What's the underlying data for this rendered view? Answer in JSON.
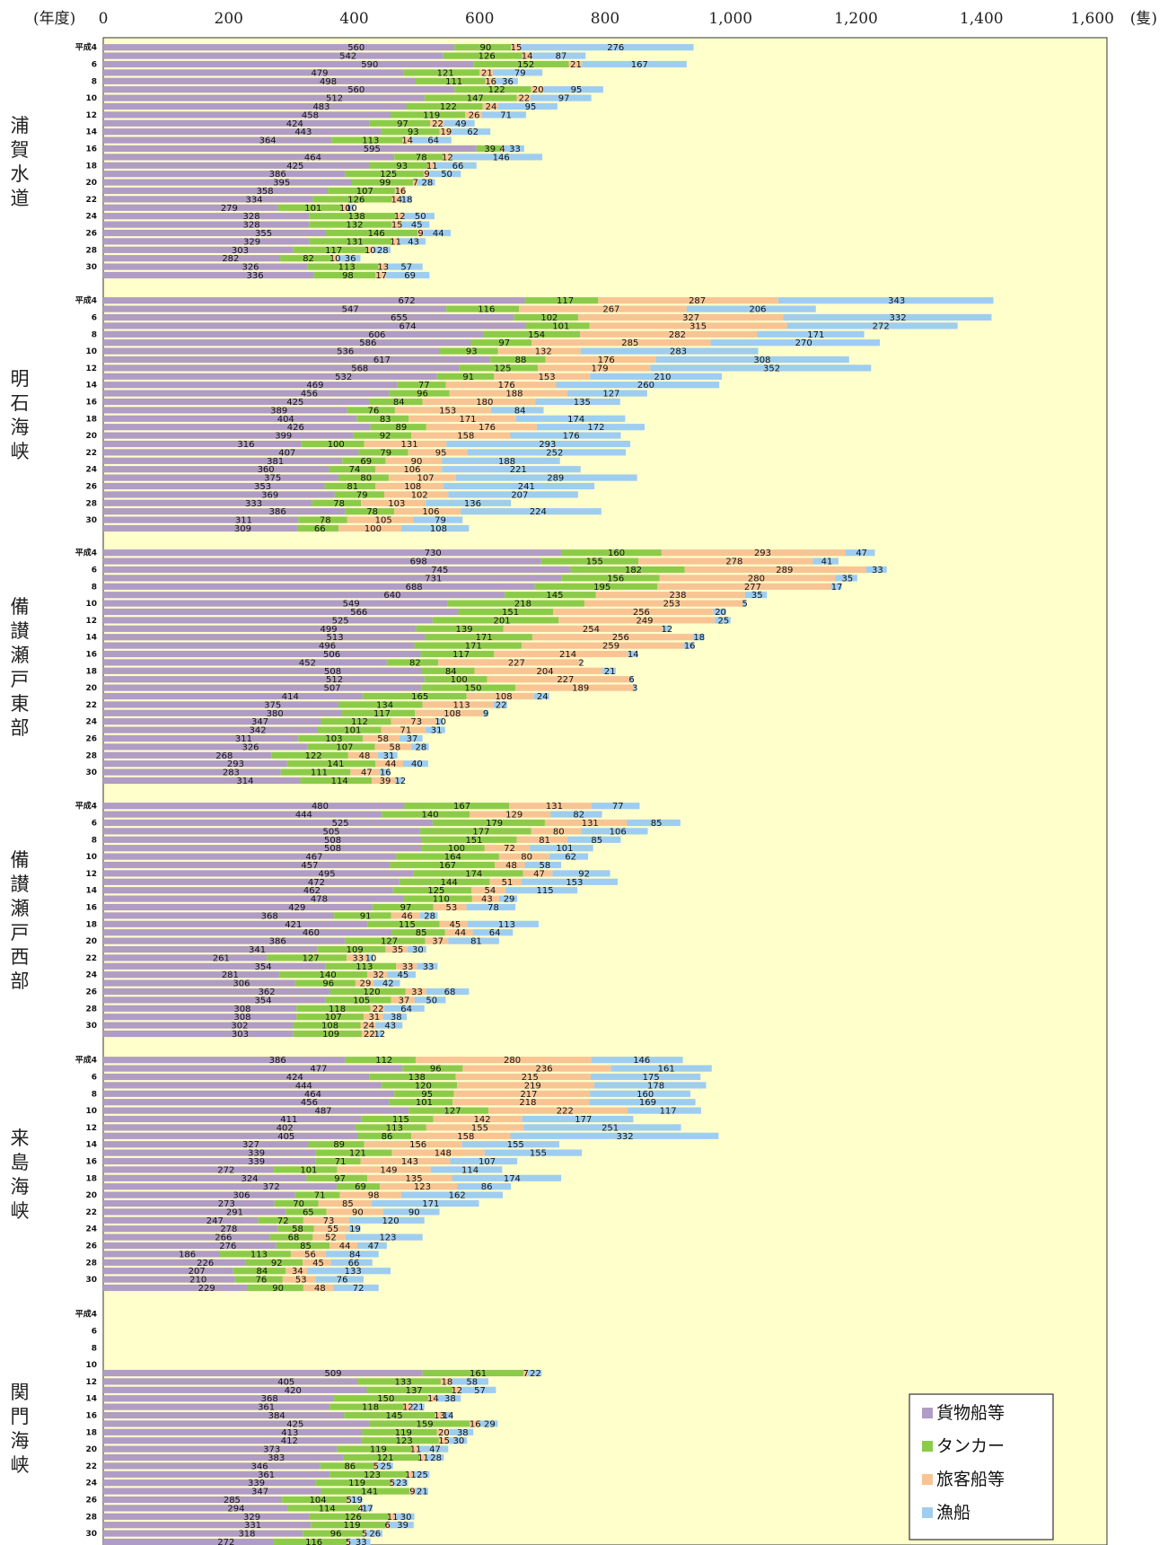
{
  "chart_data": {
    "type": "bar",
    "orientation": "horizontal",
    "stacked": true,
    "x_unit_label": "(年度)",
    "x_unit_suffix": "(隻)",
    "xlim": [
      0,
      1600
    ],
    "xticks": [
      "0",
      "200",
      "400",
      "600",
      "800",
      "1,000",
      "1,200",
      "1,400",
      "1,600"
    ],
    "grid": false,
    "legend_position": "bottom-right",
    "colors": {
      "貨物船等": "#b09cc4",
      "タンカー": "#8ccb4a",
      "旅客船等": "#f8c494",
      "漁船": "#9ecdf0",
      "plot_background": "#ffffcc"
    },
    "series_names": [
      "貨物船等",
      "タンカー",
      "旅客船等",
      "漁船"
    ],
    "row_labels": [
      "平成4",
      "",
      "6",
      "",
      "8",
      "",
      "10",
      "",
      "12",
      "",
      "14",
      "",
      "16",
      "",
      "18",
      "",
      "20",
      "",
      "22",
      "",
      "24",
      "",
      "26",
      "",
      "28",
      "",
      "30",
      ""
    ],
    "groups": [
      {
        "name": "浦賀水道",
        "values": [
          [
            560,
            90,
            15,
            276
          ],
          [
            542,
            126,
            14,
            87
          ],
          [
            590,
            152,
            21,
            167
          ],
          [
            479,
            121,
            21,
            79
          ],
          [
            498,
            111,
            16,
            36
          ],
          [
            560,
            122,
            20,
            95
          ],
          [
            512,
            147,
            22,
            97
          ],
          [
            483,
            122,
            24,
            95
          ],
          [
            458,
            119,
            26,
            71
          ],
          [
            424,
            97,
            22,
            49
          ],
          [
            443,
            93,
            19,
            62
          ],
          [
            364,
            113,
            14,
            64
          ],
          [
            595,
            39,
            4,
            33
          ],
          [
            464,
            78,
            12,
            146
          ],
          [
            425,
            93,
            11,
            66
          ],
          [
            386,
            125,
            9,
            50
          ],
          [
            395,
            99,
            7,
            28
          ],
          [
            358,
            107,
            16,
            0
          ],
          [
            334,
            126,
            14,
            18
          ],
          [
            279,
            101,
            10,
            10
          ],
          [
            328,
            138,
            12,
            50
          ],
          [
            328,
            132,
            15,
            45
          ],
          [
            355,
            146,
            9,
            44
          ],
          [
            329,
            131,
            11,
            43
          ],
          [
            303,
            117,
            10,
            28
          ],
          [
            282,
            82,
            10,
            36
          ],
          [
            326,
            113,
            13,
            57
          ],
          [
            336,
            98,
            17,
            69
          ]
        ]
      },
      {
        "name": "明石海峡",
        "values": [
          [
            672,
            117,
            287,
            343
          ],
          [
            547,
            116,
            267,
            206
          ],
          [
            655,
            102,
            327,
            332
          ],
          [
            674,
            101,
            315,
            272
          ],
          [
            606,
            154,
            282,
            171
          ],
          [
            586,
            97,
            285,
            270
          ],
          [
            536,
            93,
            132,
            283
          ],
          [
            617,
            88,
            176,
            308
          ],
          [
            568,
            125,
            179,
            352
          ],
          [
            532,
            91,
            153,
            210
          ],
          [
            469,
            77,
            176,
            260
          ],
          [
            456,
            96,
            188,
            127
          ],
          [
            425,
            84,
            180,
            135
          ],
          [
            389,
            76,
            153,
            84
          ],
          [
            404,
            83,
            171,
            174
          ],
          [
            426,
            89,
            176,
            172
          ],
          [
            399,
            92,
            158,
            176
          ],
          [
            316,
            100,
            131,
            293
          ],
          [
            407,
            79,
            95,
            252
          ],
          [
            381,
            69,
            90,
            188
          ],
          [
            360,
            74,
            106,
            221
          ],
          [
            375,
            80,
            107,
            289
          ],
          [
            353,
            81,
            108,
            241
          ],
          [
            369,
            79,
            102,
            207
          ],
          [
            333,
            78,
            103,
            136
          ],
          [
            386,
            78,
            106,
            224
          ],
          [
            311,
            78,
            105,
            79
          ],
          [
            309,
            66,
            100,
            108
          ]
        ]
      },
      {
        "name": "備讃瀬戸東部",
        "values": [
          [
            730,
            160,
            293,
            47
          ],
          [
            698,
            155,
            278,
            41
          ],
          [
            745,
            182,
            289,
            33
          ],
          [
            731,
            156,
            280,
            35
          ],
          [
            688,
            195,
            277,
            17
          ],
          [
            640,
            145,
            238,
            35
          ],
          [
            549,
            218,
            253,
            5
          ],
          [
            566,
            151,
            256,
            20
          ],
          [
            525,
            201,
            249,
            25
          ],
          [
            499,
            139,
            254,
            12
          ],
          [
            513,
            171,
            256,
            18
          ],
          [
            496,
            171,
            259,
            16
          ],
          [
            506,
            117,
            214,
            14
          ],
          [
            452,
            82,
            227,
            2
          ],
          [
            508,
            84,
            204,
            21
          ],
          [
            512,
            100,
            227,
            6
          ],
          [
            507,
            150,
            189,
            3
          ],
          [
            414,
            165,
            108,
            24
          ],
          [
            375,
            134,
            113,
            22
          ],
          [
            380,
            117,
            108,
            9
          ],
          [
            347,
            112,
            73,
            10
          ],
          [
            342,
            101,
            71,
            31
          ],
          [
            311,
            103,
            58,
            37
          ],
          [
            326,
            107,
            58,
            28
          ],
          [
            268,
            122,
            48,
            31
          ],
          [
            293,
            141,
            44,
            40
          ],
          [
            283,
            111,
            47,
            16
          ],
          [
            314,
            114,
            39,
            12
          ]
        ]
      },
      {
        "name": "備讃瀬戸西部",
        "values": [
          [
            480,
            167,
            131,
            77
          ],
          [
            444,
            140,
            129,
            82
          ],
          [
            525,
            179,
            131,
            85
          ],
          [
            505,
            177,
            80,
            106
          ],
          [
            508,
            151,
            81,
            85
          ],
          [
            508,
            100,
            72,
            101
          ],
          [
            467,
            164,
            80,
            62
          ],
          [
            457,
            167,
            48,
            58
          ],
          [
            495,
            174,
            47,
            92
          ],
          [
            472,
            144,
            51,
            153
          ],
          [
            462,
            125,
            54,
            115
          ],
          [
            478,
            110,
            43,
            29
          ],
          [
            429,
            97,
            53,
            78
          ],
          [
            368,
            91,
            46,
            28
          ],
          [
            421,
            115,
            45,
            113
          ],
          [
            460,
            85,
            44,
            64
          ],
          [
            386,
            127,
            37,
            81
          ],
          [
            341,
            109,
            35,
            30
          ],
          [
            261,
            127,
            33,
            10
          ],
          [
            354,
            113,
            33,
            33
          ],
          [
            281,
            140,
            32,
            45
          ],
          [
            306,
            96,
            29,
            42
          ],
          [
            362,
            120,
            33,
            68
          ],
          [
            354,
            105,
            37,
            50
          ],
          [
            308,
            118,
            22,
            64
          ],
          [
            308,
            107,
            31,
            38
          ],
          [
            302,
            108,
            24,
            43
          ],
          [
            303,
            109,
            22,
            12
          ]
        ]
      },
      {
        "name": "来島海峡",
        "values": [
          [
            386,
            112,
            280,
            146
          ],
          [
            477,
            96,
            236,
            161
          ],
          [
            424,
            138,
            215,
            175
          ],
          [
            444,
            120,
            219,
            178
          ],
          [
            464,
            95,
            217,
            160
          ],
          [
            456,
            101,
            218,
            169
          ],
          [
            487,
            127,
            222,
            117
          ],
          [
            411,
            115,
            142,
            177
          ],
          [
            402,
            113,
            155,
            251
          ],
          [
            405,
            86,
            158,
            332
          ],
          [
            327,
            89,
            156,
            155
          ],
          [
            339,
            121,
            148,
            155
          ],
          [
            339,
            71,
            143,
            107
          ],
          [
            272,
            101,
            149,
            114
          ],
          [
            324,
            97,
            135,
            174
          ],
          [
            372,
            69,
            123,
            86
          ],
          [
            306,
            71,
            98,
            162
          ],
          [
            273,
            70,
            85,
            171
          ],
          [
            291,
            65,
            90,
            90
          ],
          [
            247,
            72,
            73,
            120
          ],
          [
            278,
            58,
            55,
            19
          ],
          [
            266,
            68,
            52,
            123
          ],
          [
            276,
            85,
            44,
            47
          ],
          [
            186,
            113,
            56,
            84
          ],
          [
            226,
            92,
            45,
            66
          ],
          [
            207,
            84,
            34,
            133
          ],
          [
            210,
            76,
            53,
            76
          ],
          [
            229,
            90,
            48,
            72
          ]
        ]
      },
      {
        "name": "関門海峡",
        "values": [
          null,
          null,
          null,
          null,
          null,
          null,
          null,
          [
            509,
            161,
            7,
            22
          ],
          [
            405,
            133,
            18,
            58
          ],
          [
            420,
            137,
            12,
            57
          ],
          [
            368,
            150,
            14,
            38
          ],
          [
            361,
            118,
            12,
            21
          ],
          [
            384,
            145,
            13,
            14
          ],
          [
            425,
            159,
            16,
            29
          ],
          [
            413,
            119,
            20,
            38
          ],
          [
            412,
            123,
            15,
            30
          ],
          [
            373,
            119,
            11,
            47
          ],
          [
            383,
            121,
            11,
            28
          ],
          [
            346,
            86,
            5,
            25
          ],
          [
            361,
            123,
            11,
            25
          ],
          [
            339,
            119,
            5,
            23
          ],
          [
            347,
            141,
            9,
            21
          ],
          [
            285,
            104,
            5,
            19
          ],
          [
            294,
            114,
            4,
            17
          ],
          [
            329,
            126,
            11,
            30
          ],
          [
            331,
            119,
            6,
            39
          ],
          [
            318,
            96,
            5,
            26
          ],
          [
            272,
            116,
            5,
            33
          ]
        ]
      }
    ]
  }
}
